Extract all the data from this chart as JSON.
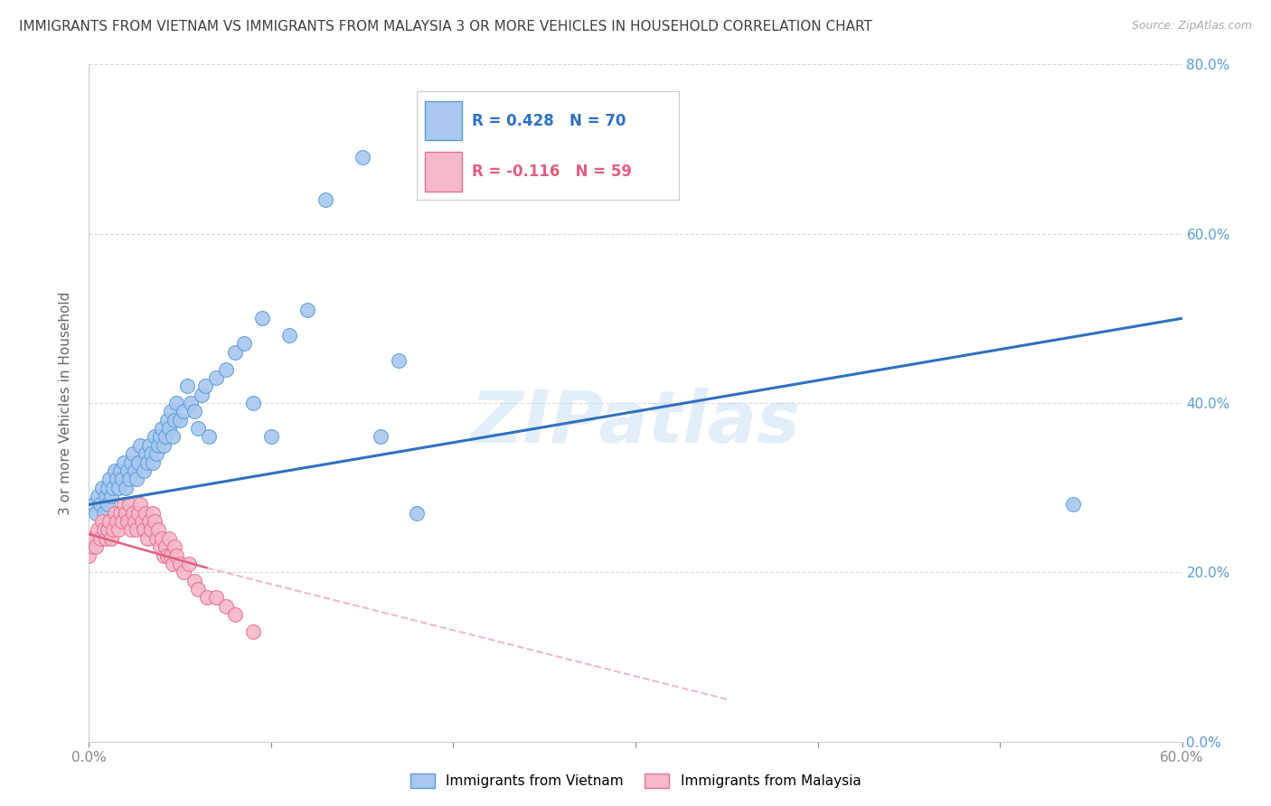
{
  "title": "IMMIGRANTS FROM VIETNAM VS IMMIGRANTS FROM MALAYSIA 3 OR MORE VEHICLES IN HOUSEHOLD CORRELATION CHART",
  "source": "Source: ZipAtlas.com",
  "ylabel": "3 or more Vehicles in Household",
  "xlim": [
    0.0,
    0.6
  ],
  "ylim": [
    0.0,
    0.8
  ],
  "xticks": [
    0.0,
    0.1,
    0.2,
    0.3,
    0.4,
    0.5,
    0.6
  ],
  "xtick_labels": [
    "0.0%",
    "",
    "",
    "",
    "",
    "",
    "60.0%"
  ],
  "yticks": [
    0.0,
    0.2,
    0.4,
    0.6,
    0.8
  ],
  "right_ytick_labels": [
    "0.0%",
    "20.0%",
    "40.0%",
    "60.0%",
    "80.0%"
  ],
  "vietnam_color": "#a8c8f0",
  "vietnam_edge_color": "#5b9bd5",
  "malaysia_color": "#f5b8c8",
  "malaysia_edge_color": "#e87090",
  "trend_vietnam_color": "#3070c0",
  "trend_malaysia_solid_color": "#e06080",
  "trend_malaysia_dashed_color": "#f0b8c8",
  "R_vietnam": 0.428,
  "N_vietnam": 70,
  "R_malaysia": -0.116,
  "N_malaysia": 59,
  "watermark": "ZIPatlas",
  "background_color": "#ffffff",
  "grid_color": "#d8d8d8",
  "title_color": "#404040",
  "right_axis_color": "#5b9bd5",
  "legend_label_vietnam": "Immigrants from Vietnam",
  "legend_label_malaysia": "Immigrants from Malaysia",
  "vietnam_x": [
    0.003,
    0.004,
    0.005,
    0.006,
    0.007,
    0.008,
    0.009,
    0.01,
    0.01,
    0.011,
    0.012,
    0.013,
    0.014,
    0.015,
    0.016,
    0.017,
    0.018,
    0.019,
    0.02,
    0.021,
    0.022,
    0.023,
    0.024,
    0.025,
    0.026,
    0.027,
    0.028,
    0.03,
    0.031,
    0.032,
    0.033,
    0.034,
    0.035,
    0.036,
    0.037,
    0.038,
    0.039,
    0.04,
    0.041,
    0.042,
    0.043,
    0.044,
    0.045,
    0.046,
    0.047,
    0.048,
    0.05,
    0.052,
    0.054,
    0.056,
    0.058,
    0.06,
    0.062,
    0.064,
    0.066,
    0.07,
    0.075,
    0.08,
    0.085,
    0.09,
    0.095,
    0.1,
    0.11,
    0.12,
    0.13,
    0.15,
    0.16,
    0.17,
    0.18,
    0.54
  ],
  "vietnam_y": [
    0.28,
    0.27,
    0.29,
    0.28,
    0.3,
    0.27,
    0.29,
    0.28,
    0.3,
    0.31,
    0.29,
    0.3,
    0.32,
    0.31,
    0.3,
    0.32,
    0.31,
    0.33,
    0.3,
    0.32,
    0.31,
    0.33,
    0.34,
    0.32,
    0.31,
    0.33,
    0.35,
    0.32,
    0.34,
    0.33,
    0.35,
    0.34,
    0.33,
    0.36,
    0.34,
    0.35,
    0.36,
    0.37,
    0.35,
    0.36,
    0.38,
    0.37,
    0.39,
    0.36,
    0.38,
    0.4,
    0.38,
    0.39,
    0.42,
    0.4,
    0.39,
    0.37,
    0.41,
    0.42,
    0.36,
    0.43,
    0.44,
    0.46,
    0.47,
    0.4,
    0.5,
    0.36,
    0.48,
    0.51,
    0.64,
    0.69,
    0.36,
    0.45,
    0.27,
    0.28
  ],
  "malaysia_x": [
    0.0,
    0.001,
    0.002,
    0.003,
    0.004,
    0.005,
    0.006,
    0.007,
    0.008,
    0.009,
    0.01,
    0.011,
    0.012,
    0.013,
    0.014,
    0.015,
    0.016,
    0.017,
    0.018,
    0.019,
    0.02,
    0.021,
    0.022,
    0.023,
    0.024,
    0.025,
    0.026,
    0.027,
    0.028,
    0.029,
    0.03,
    0.031,
    0.032,
    0.033,
    0.034,
    0.035,
    0.036,
    0.037,
    0.038,
    0.039,
    0.04,
    0.041,
    0.042,
    0.043,
    0.044,
    0.045,
    0.046,
    0.047,
    0.048,
    0.05,
    0.052,
    0.055,
    0.058,
    0.06,
    0.065,
    0.07,
    0.075,
    0.08,
    0.09
  ],
  "malaysia_y": [
    0.22,
    0.24,
    0.23,
    0.24,
    0.23,
    0.25,
    0.24,
    0.26,
    0.25,
    0.24,
    0.25,
    0.26,
    0.24,
    0.25,
    0.27,
    0.26,
    0.25,
    0.27,
    0.26,
    0.28,
    0.27,
    0.26,
    0.28,
    0.25,
    0.27,
    0.26,
    0.25,
    0.27,
    0.28,
    0.26,
    0.25,
    0.27,
    0.24,
    0.26,
    0.25,
    0.27,
    0.26,
    0.24,
    0.25,
    0.23,
    0.24,
    0.22,
    0.23,
    0.22,
    0.24,
    0.22,
    0.21,
    0.23,
    0.22,
    0.21,
    0.2,
    0.21,
    0.19,
    0.18,
    0.17,
    0.17,
    0.16,
    0.15,
    0.13
  ],
  "trend_vietnam_x0": 0.0,
  "trend_vietnam_y0": 0.28,
  "trend_vietnam_x1": 0.6,
  "trend_vietnam_y1": 0.5,
  "trend_malaysia_solid_x0": 0.0,
  "trend_malaysia_solid_y0": 0.245,
  "trend_malaysia_solid_x1": 0.065,
  "trend_malaysia_solid_y1": 0.205,
  "trend_malaysia_dashed_x1": 0.35,
  "trend_malaysia_dashed_y1": 0.05
}
